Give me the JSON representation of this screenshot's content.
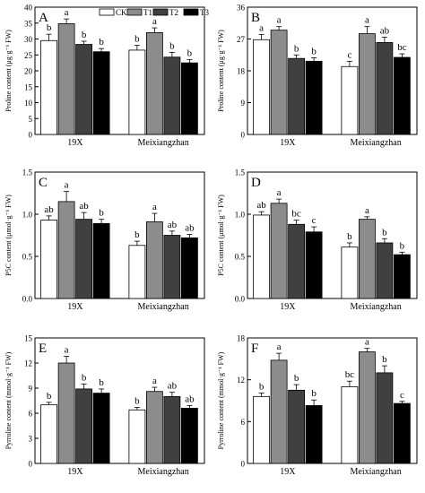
{
  "legend": {
    "entries": [
      {
        "name": "CK",
        "color": "#ffffff"
      },
      {
        "name": "T1",
        "color": "#8c8c8c"
      },
      {
        "name": "T2",
        "color": "#404040"
      },
      {
        "name": "T3",
        "color": "#000000"
      }
    ],
    "location": "top of panel A"
  },
  "chart_data": [
    {
      "type": "bar",
      "panel": "A",
      "ylabel": "Proline content (μg·g⁻¹ FW)",
      "ylim": [
        0,
        40
      ],
      "yticks": [
        0,
        5,
        10,
        15,
        20,
        25,
        30,
        35,
        40
      ],
      "categories": [
        "19X",
        "Meixiangzhan"
      ],
      "series": [
        {
          "name": "CK",
          "values": [
            29.5,
            26.5
          ],
          "errors": [
            2.0,
            1.5
          ],
          "letters": [
            "b",
            "b"
          ]
        },
        {
          "name": "T1",
          "values": [
            34.8,
            32.0
          ],
          "errors": [
            1.5,
            1.5
          ],
          "letters": [
            "a",
            "a"
          ]
        },
        {
          "name": "T2",
          "values": [
            28.3,
            24.3
          ],
          "errors": [
            1.0,
            1.5
          ],
          "letters": [
            "b",
            "b"
          ]
        },
        {
          "name": "T3",
          "values": [
            26.0,
            22.5
          ],
          "errors": [
            1.0,
            1.0
          ],
          "letters": [
            "b",
            "b"
          ]
        }
      ]
    },
    {
      "type": "bar",
      "panel": "B",
      "ylabel": "Proline content (μg·g⁻¹ FW)",
      "ylim": [
        0,
        36
      ],
      "yticks": [
        0,
        9,
        18,
        27,
        36
      ],
      "categories": [
        "19X",
        "Meixiangzhan"
      ],
      "series": [
        {
          "name": "CK",
          "values": [
            26.8,
            19.2
          ],
          "errors": [
            1.5,
            1.5
          ],
          "letters": [
            "a",
            "c"
          ]
        },
        {
          "name": "T1",
          "values": [
            29.5,
            28.5
          ],
          "errors": [
            1.0,
            2.0
          ],
          "letters": [
            "a",
            "a"
          ]
        },
        {
          "name": "T2",
          "values": [
            21.5,
            26.0
          ],
          "errors": [
            1.0,
            1.5
          ],
          "letters": [
            "b",
            "ab"
          ]
        },
        {
          "name": "T3",
          "values": [
            20.7,
            21.8
          ],
          "errors": [
            1.0,
            1.0
          ],
          "letters": [
            "b",
            "bc"
          ]
        }
      ]
    },
    {
      "type": "bar",
      "panel": "C",
      "ylabel": "P5C content (μmol·g⁻¹ FW)",
      "ylim": [
        0,
        1.5
      ],
      "yticks": [
        0.0,
        0.5,
        1.0,
        1.5
      ],
      "categories": [
        "19X",
        "Meixiangzhan"
      ],
      "series": [
        {
          "name": "CK",
          "values": [
            0.93,
            0.63
          ],
          "errors": [
            0.05,
            0.05
          ],
          "letters": [
            "ab",
            "b"
          ]
        },
        {
          "name": "T1",
          "values": [
            1.15,
            0.91
          ],
          "errors": [
            0.12,
            0.1
          ],
          "letters": [
            "a",
            "a"
          ]
        },
        {
          "name": "T2",
          "values": [
            0.94,
            0.75
          ],
          "errors": [
            0.08,
            0.05
          ],
          "letters": [
            "ab",
            "ab"
          ]
        },
        {
          "name": "T3",
          "values": [
            0.89,
            0.72
          ],
          "errors": [
            0.05,
            0.04
          ],
          "letters": [
            "b",
            "ab"
          ]
        }
      ]
    },
    {
      "type": "bar",
      "panel": "D",
      "ylabel": "P5C content (μmol·g⁻¹ FW)",
      "ylim": [
        0,
        1.5
      ],
      "yticks": [
        0.0,
        0.5,
        1.0,
        1.5
      ],
      "categories": [
        "19X",
        "Meixiangzhan"
      ],
      "series": [
        {
          "name": "CK",
          "values": [
            0.99,
            0.61
          ],
          "errors": [
            0.04,
            0.05
          ],
          "letters": [
            "ab",
            "b"
          ]
        },
        {
          "name": "T1",
          "values": [
            1.13,
            0.94
          ],
          "errors": [
            0.05,
            0.03
          ],
          "letters": [
            "a",
            "a"
          ]
        },
        {
          "name": "T2",
          "values": [
            0.88,
            0.66
          ],
          "errors": [
            0.05,
            0.05
          ],
          "letters": [
            "bc",
            "b"
          ]
        },
        {
          "name": "T3",
          "values": [
            0.79,
            0.52
          ],
          "errors": [
            0.06,
            0.03
          ],
          "letters": [
            "c",
            "b"
          ]
        }
      ]
    },
    {
      "type": "bar",
      "panel": "E",
      "ylabel": "Pyrroline content (mmol·g⁻¹ FW)",
      "ylim": [
        0,
        15
      ],
      "yticks": [
        0,
        3,
        6,
        9,
        12,
        15
      ],
      "categories": [
        "19X",
        "Meixiangzhan"
      ],
      "series": [
        {
          "name": "CK",
          "values": [
            7.0,
            6.4
          ],
          "errors": [
            0.3,
            0.3
          ],
          "letters": [
            "b",
            "b"
          ]
        },
        {
          "name": "T1",
          "values": [
            12.0,
            8.6
          ],
          "errors": [
            0.8,
            0.5
          ],
          "letters": [
            "a",
            "a"
          ]
        },
        {
          "name": "T2",
          "values": [
            8.9,
            8.0
          ],
          "errors": [
            0.6,
            0.5
          ],
          "letters": [
            "b",
            "ab"
          ]
        },
        {
          "name": "T3",
          "values": [
            8.4,
            6.6
          ],
          "errors": [
            0.5,
            0.3
          ],
          "letters": [
            "b",
            "ab"
          ]
        }
      ]
    },
    {
      "type": "bar",
      "panel": "F",
      "ylabel": "Pyrroline content (mmol·g⁻¹ FW)",
      "ylim": [
        0,
        18
      ],
      "yticks": [
        0,
        6,
        12,
        18
      ],
      "categories": [
        "19X",
        "Meixiangzhan"
      ],
      "series": [
        {
          "name": "CK",
          "values": [
            9.6,
            11.0
          ],
          "errors": [
            0.5,
            0.8
          ],
          "letters": [
            "b",
            "bc"
          ]
        },
        {
          "name": "T1",
          "values": [
            14.8,
            16.0
          ],
          "errors": [
            1.0,
            0.5
          ],
          "letters": [
            "a",
            "a"
          ]
        },
        {
          "name": "T2",
          "values": [
            10.5,
            13.0
          ],
          "errors": [
            0.8,
            1.0
          ],
          "letters": [
            "b",
            "b"
          ]
        },
        {
          "name": "T3",
          "values": [
            8.3,
            8.6
          ],
          "errors": [
            0.8,
            0.3
          ],
          "letters": [
            "b",
            "c"
          ]
        }
      ]
    }
  ]
}
